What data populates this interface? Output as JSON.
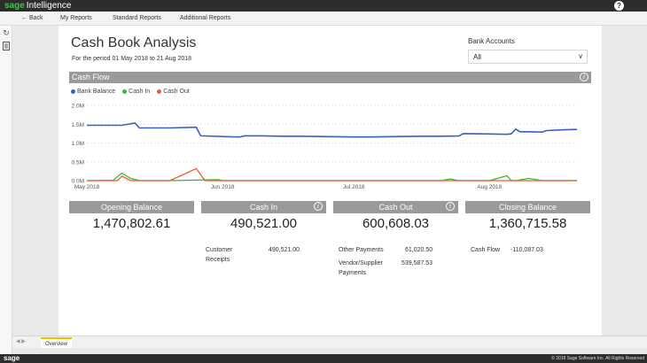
{
  "brand": {
    "part1": "sage",
    "part2": "Intelligence"
  },
  "help_icon": "?",
  "nav": {
    "back": "← Back",
    "items": [
      "My Reports",
      "Standard Reports",
      "Additional Reports"
    ]
  },
  "report": {
    "title": "Cash Book Analysis",
    "subtitle": "For the period 01 May 2018 to 21 Aug 2018",
    "bank_accounts_label": "Bank Accounts",
    "bank_accounts_value": "All"
  },
  "cash_flow_panel": {
    "title": "Cash Flow",
    "legend": [
      "Bank Balance",
      "Cash In",
      "Cash Out"
    ]
  },
  "colors": {
    "bank_balance": "#3b5fc4",
    "cash_in": "#3cb43c",
    "cash_out": "#f05a28",
    "header_grey": "#9a9a9a"
  },
  "chart_data": {
    "type": "line",
    "title": "Cash Flow",
    "y_ticks": [
      "0.0M",
      "0.5M",
      "1.0M",
      "1.5M",
      "2.0M"
    ],
    "x_ticks": [
      "May 2018",
      "Jun 2018",
      "Jul 2018",
      "Aug 2018"
    ],
    "ylim": [
      0,
      2000000
    ],
    "xlim": [
      "2018-05-01",
      "2018-08-21"
    ],
    "series": [
      {
        "name": "Bank Balance",
        "x": [
          "2018-05-01",
          "2018-05-05",
          "2018-05-09",
          "2018-05-12",
          "2018-05-13",
          "2018-05-20",
          "2018-05-26",
          "2018-05-27",
          "2018-06-03",
          "2018-06-05",
          "2018-06-06",
          "2018-06-10",
          "2018-06-15",
          "2018-06-20",
          "2018-06-25",
          "2018-07-01",
          "2018-07-05",
          "2018-07-10",
          "2018-07-15",
          "2018-07-20",
          "2018-07-25",
          "2018-07-26",
          "2018-08-01",
          "2018-08-05",
          "2018-08-06",
          "2018-08-07",
          "2018-08-08",
          "2018-08-10",
          "2018-08-13",
          "2018-08-14",
          "2018-08-18",
          "2018-08-21"
        ],
        "values": [
          1470000,
          1470000,
          1470000,
          1530000,
          1400000,
          1400000,
          1420000,
          1190000,
          1165000,
          1160000,
          1190000,
          1190000,
          1180000,
          1180000,
          1170000,
          1160000,
          1160000,
          1170000,
          1180000,
          1180000,
          1185000,
          1250000,
          1240000,
          1230000,
          1245000,
          1370000,
          1300000,
          1300000,
          1290000,
          1330000,
          1350000,
          1360000
        ]
      },
      {
        "name": "Cash In",
        "x": [
          "2018-05-01",
          "2018-05-07",
          "2018-05-09",
          "2018-05-11",
          "2018-05-13",
          "2018-05-20",
          "2018-05-31",
          "2018-06-01",
          "2018-06-04",
          "2018-06-20",
          "2018-07-01",
          "2018-07-21",
          "2018-07-23",
          "2018-07-25",
          "2018-08-01",
          "2018-08-05",
          "2018-08-06",
          "2018-08-07",
          "2018-08-10",
          "2018-08-13",
          "2018-08-15",
          "2018-08-21"
        ],
        "values": [
          0,
          10000,
          200000,
          60000,
          0,
          0,
          25000,
          0,
          0,
          0,
          0,
          0,
          45000,
          0,
          0,
          130000,
          0,
          0,
          60000,
          0,
          0,
          0
        ]
      },
      {
        "name": "Cash Out",
        "x": [
          "2018-05-01",
          "2018-05-08",
          "2018-05-09",
          "2018-05-11",
          "2018-05-13",
          "2018-05-20",
          "2018-05-26",
          "2018-05-28",
          "2018-06-15",
          "2018-07-01",
          "2018-08-01",
          "2018-08-21"
        ],
        "values": [
          0,
          0,
          120000,
          0,
          0,
          0,
          320000,
          0,
          0,
          0,
          0,
          0
        ]
      }
    ]
  },
  "cards": [
    {
      "title": "Opening Balance",
      "value": "1,470,802.61",
      "info": false
    },
    {
      "title": "Cash In",
      "value": "490,521.00",
      "info": true
    },
    {
      "title": "Cash Out",
      "value": "600,608.03",
      "info": true
    },
    {
      "title": "Closing Balance",
      "value": "1,360,715.58",
      "info": false
    }
  ],
  "details": {
    "cash_in": [
      {
        "label_1": "Customer",
        "label_2": "Receipts",
        "value": "490,521.00"
      }
    ],
    "cash_out": [
      {
        "label": "Other Payments",
        "value": "61,020.50"
      },
      {
        "label_1": "Vendor/Supplier",
        "label_2": "Payments",
        "value": "539,587.53"
      }
    ],
    "closing": [
      {
        "label": "Cash Flow",
        "value": "-110,087.03"
      }
    ]
  },
  "tabs": {
    "arrows": "◀ ▶",
    "active": "Overview"
  },
  "footer": {
    "logo": "sage",
    "copyright": "© 2018 Sage Software Inc. All Rights Reserved"
  }
}
